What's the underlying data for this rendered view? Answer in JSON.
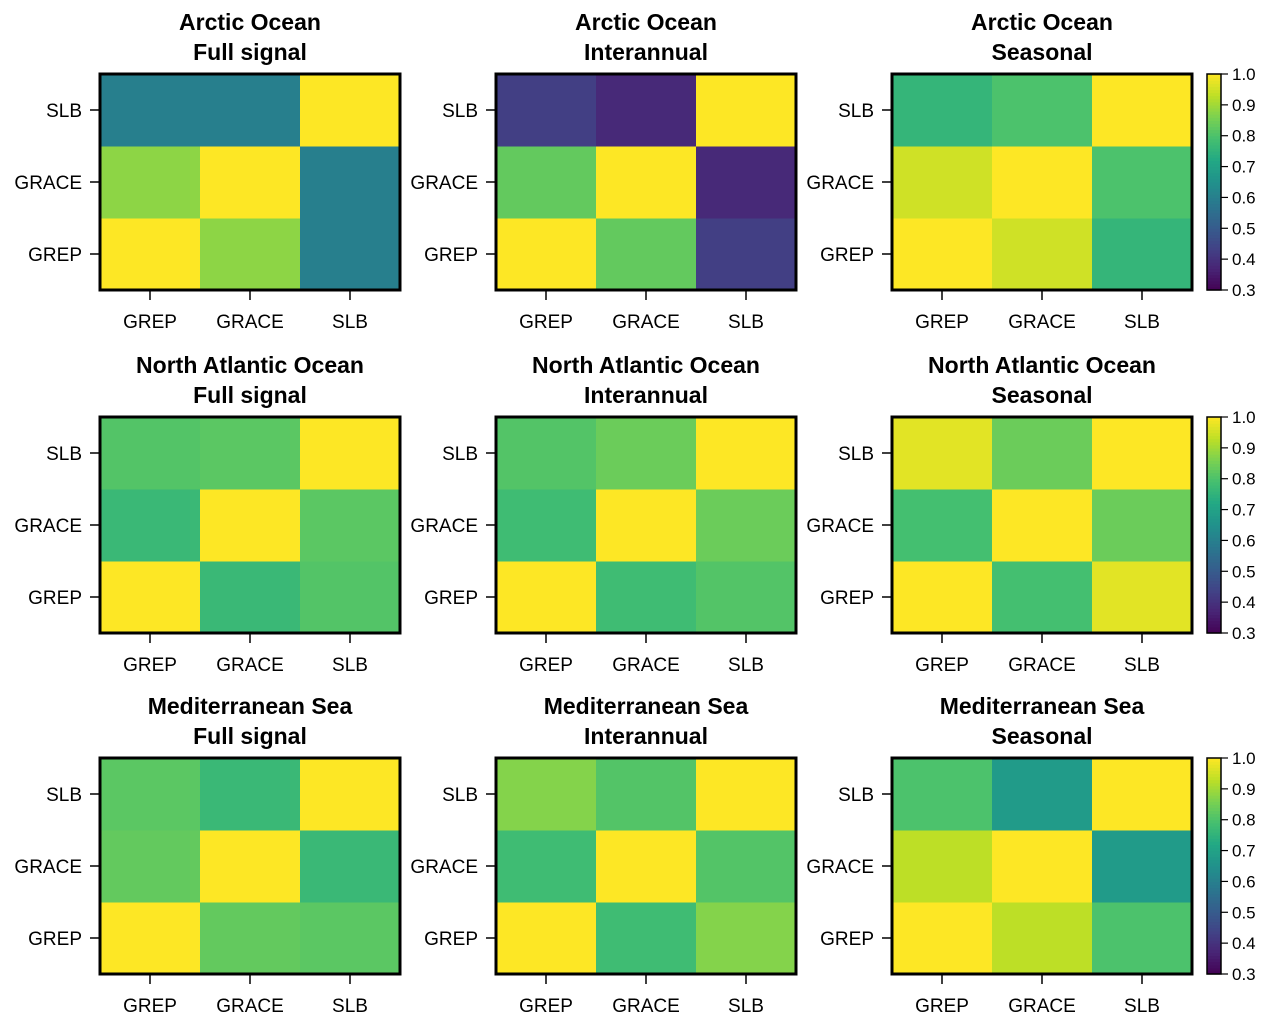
{
  "chart_data": [
    {
      "type": "heatmap",
      "title": [
        "Arctic Ocean",
        "Full signal"
      ],
      "x": [
        "GREP",
        "GRACE",
        "SLB"
      ],
      "y": [
        "GREP",
        "GRACE",
        "SLB"
      ],
      "z": [
        [
          1.0,
          0.88,
          0.6
        ],
        [
          0.88,
          1.0,
          0.6
        ],
        [
          0.6,
          0.6,
          1.0
        ]
      ]
    },
    {
      "type": "heatmap",
      "title": [
        "Arctic Ocean",
        "Interannual"
      ],
      "x": [
        "GREP",
        "GRACE",
        "SLB"
      ],
      "y": [
        "GREP",
        "GRACE",
        "SLB"
      ],
      "z": [
        [
          1.0,
          0.83,
          0.43
        ],
        [
          0.83,
          1.0,
          0.38
        ],
        [
          0.43,
          0.38,
          1.0
        ]
      ]
    },
    {
      "type": "heatmap",
      "title": [
        "Arctic Ocean",
        "Seasonal"
      ],
      "x": [
        "GREP",
        "GRACE",
        "SLB"
      ],
      "y": [
        "GREP",
        "GRACE",
        "SLB"
      ],
      "z": [
        [
          1.0,
          0.95,
          0.76
        ],
        [
          0.95,
          1.0,
          0.8
        ],
        [
          0.76,
          0.8,
          1.0
        ]
      ]
    },
    {
      "type": "heatmap",
      "title": [
        "North Atlantic Ocean",
        "Full signal"
      ],
      "x": [
        "GREP",
        "GRACE",
        "SLB"
      ],
      "y": [
        "GREP",
        "GRACE",
        "SLB"
      ],
      "z": [
        [
          1.0,
          0.77,
          0.81
        ],
        [
          0.77,
          1.0,
          0.82
        ],
        [
          0.81,
          0.82,
          1.0
        ]
      ]
    },
    {
      "type": "heatmap",
      "title": [
        "North Atlantic Ocean",
        "Interannual"
      ],
      "x": [
        "GREP",
        "GRACE",
        "SLB"
      ],
      "y": [
        "GREP",
        "GRACE",
        "SLB"
      ],
      "z": [
        [
          1.0,
          0.78,
          0.81
        ],
        [
          0.78,
          1.0,
          0.84
        ],
        [
          0.81,
          0.84,
          1.0
        ]
      ]
    },
    {
      "type": "heatmap",
      "title": [
        "North Atlantic Ocean",
        "Seasonal"
      ],
      "x": [
        "GREP",
        "GRACE",
        "SLB"
      ],
      "y": [
        "GREP",
        "GRACE",
        "SLB"
      ],
      "z": [
        [
          1.0,
          0.79,
          0.97
        ],
        [
          0.79,
          1.0,
          0.84
        ],
        [
          0.97,
          0.84,
          1.0
        ]
      ]
    },
    {
      "type": "heatmap",
      "title": [
        "Mediterranean Sea",
        "Full signal"
      ],
      "x": [
        "GREP",
        "GRACE",
        "SLB"
      ],
      "y": [
        "GREP",
        "GRACE",
        "SLB"
      ],
      "z": [
        [
          1.0,
          0.83,
          0.82
        ],
        [
          0.83,
          1.0,
          0.77
        ],
        [
          0.82,
          0.77,
          1.0
        ]
      ]
    },
    {
      "type": "heatmap",
      "title": [
        "Mediterranean Sea",
        "Interannual"
      ],
      "x": [
        "GREP",
        "GRACE",
        "SLB"
      ],
      "y": [
        "GREP",
        "GRACE",
        "SLB"
      ],
      "z": [
        [
          1.0,
          0.78,
          0.87
        ],
        [
          0.78,
          1.0,
          0.81
        ],
        [
          0.87,
          0.81,
          1.0
        ]
      ]
    },
    {
      "type": "heatmap",
      "title": [
        "Mediterranean Sea",
        "Seasonal"
      ],
      "x": [
        "GREP",
        "GRACE",
        "SLB"
      ],
      "y": [
        "GREP",
        "GRACE",
        "SLB"
      ],
      "z": [
        [
          1.0,
          0.93,
          0.8
        ],
        [
          0.93,
          1.0,
          0.68
        ],
        [
          0.8,
          0.68,
          1.0
        ]
      ]
    }
  ],
  "colorbar": {
    "colormap": "viridis",
    "range": [
      0.3,
      1.0
    ],
    "ticks": [
      "1.0",
      "0.9",
      "0.8",
      "0.7",
      "0.6",
      "0.5",
      "0.4",
      "0.3"
    ]
  }
}
